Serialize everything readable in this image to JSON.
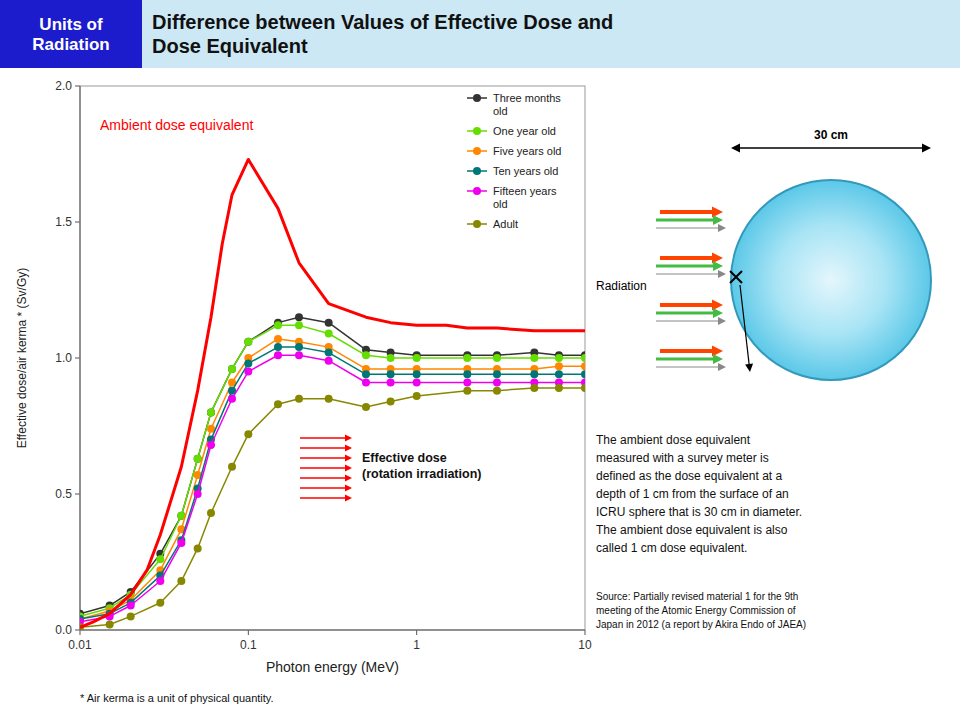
{
  "chart_data": {
    "type": "line",
    "title": "Difference between Values of Effective Dose and\nDose Equivalent",
    "subtitle": "Units of\nRadiation",
    "x_label": "Photon energy (MeV)",
    "y_label": "Effective dose/air kerma * (Sv/Gy)",
    "x": [
      0.01,
      0.015,
      0.02,
      0.03,
      0.04,
      0.05,
      0.06,
      0.08,
      0.1,
      0.15,
      0.2,
      0.3,
      0.5,
      0.7,
      1.0,
      2.0,
      3.0,
      5.0,
      7.0,
      10.0
    ],
    "series": [
      {
        "name": "Three months\nold",
        "color": "#333333",
        "marker": "circle",
        "values": [
          0.06,
          0.09,
          0.14,
          0.28,
          0.42,
          0.63,
          0.8,
          0.96,
          1.06,
          1.13,
          1.15,
          1.13,
          1.03,
          1.02,
          1.01,
          1.01,
          1.01,
          1.02,
          1.01,
          1.01
        ]
      },
      {
        "name": "One year old",
        "color": "#66dd00",
        "marker": "circle",
        "values": [
          0.05,
          0.08,
          0.13,
          0.26,
          0.42,
          0.63,
          0.8,
          0.96,
          1.06,
          1.12,
          1.12,
          1.09,
          1.01,
          1.0,
          1.0,
          1.0,
          1.0,
          1.0,
          1.0,
          1.0
        ]
      },
      {
        "name": "Five years old",
        "color": "#ff8800",
        "marker": "circle",
        "values": [
          0.04,
          0.07,
          0.11,
          0.22,
          0.37,
          0.57,
          0.74,
          0.91,
          1.0,
          1.07,
          1.06,
          1.04,
          0.96,
          0.96,
          0.96,
          0.96,
          0.96,
          0.96,
          0.97,
          0.97
        ]
      },
      {
        "name": "Ten years old",
        "color": "#007777",
        "marker": "circle",
        "values": [
          0.04,
          0.06,
          0.1,
          0.2,
          0.33,
          0.52,
          0.7,
          0.88,
          0.98,
          1.04,
          1.04,
          1.02,
          0.94,
          0.94,
          0.94,
          0.94,
          0.94,
          0.94,
          0.94,
          0.94
        ]
      },
      {
        "name": "Fifteen years\nold",
        "color": "#ee00ee",
        "marker": "circle",
        "values": [
          0.03,
          0.05,
          0.09,
          0.18,
          0.32,
          0.5,
          0.68,
          0.85,
          0.95,
          1.01,
          1.01,
          0.99,
          0.91,
          0.91,
          0.91,
          0.91,
          0.91,
          0.91,
          0.91,
          0.91
        ]
      },
      {
        "name": "Adult",
        "color": "#888800",
        "marker": "circle",
        "values": [
          0.01,
          0.02,
          0.05,
          0.1,
          0.18,
          0.3,
          0.43,
          0.6,
          0.72,
          0.83,
          0.85,
          0.85,
          0.82,
          0.84,
          0.86,
          0.88,
          0.88,
          0.89,
          0.89,
          0.89
        ]
      },
      {
        "name": "Ambient dose equivalent",
        "color": "#ff0000",
        "marker": "none",
        "x": [
          0.01,
          0.012,
          0.015,
          0.02,
          0.025,
          0.03,
          0.04,
          0.05,
          0.06,
          0.07,
          0.08,
          0.1,
          0.15,
          0.2,
          0.3,
          0.5,
          0.7,
          1.0,
          1.5,
          2.0,
          3.0,
          5.0,
          7.0,
          10.0
        ],
        "values": [
          0.01,
          0.03,
          0.06,
          0.13,
          0.22,
          0.35,
          0.6,
          0.88,
          1.15,
          1.42,
          1.6,
          1.73,
          1.55,
          1.35,
          1.2,
          1.15,
          1.13,
          1.12,
          1.12,
          1.11,
          1.11,
          1.1,
          1.1,
          1.1
        ]
      }
    ],
    "xlim": [
      0.01,
      10
    ],
    "ylim": [
      0,
      2
    ],
    "xticks": [
      0.01,
      0.1,
      1,
      10
    ],
    "yticks": [
      {
        "value": 0,
        "label": "0.0"
      },
      0.5,
      {
        "value": 1,
        "label": "1.0"
      },
      1.5,
      {
        "value": 2,
        "label": "2.0"
      }
    ],
    "log": "x",
    "grid": false,
    "legend": "upper right",
    "annotations": [
      "Effective dose\n(rotation irradiation)",
      "* Air kerma is a unit of physical quantity.",
      "The ambient dose equivalent\nmeasured with a survey meter is\ndefined as the dose equivalent at a\ndepth of 1 cm from the surface of an\nICRU sphere that is 30 cm in diameter.\nThe ambient dose equivalent is also\ncalled 1 cm dose equivalent.",
      "Source: Partially revised material 1 for the 9th\nmeeting of the Atomic Energy Commission of\nJapan in 2012 (a report by Akira Endo of JAEA)",
      "Radiation",
      "30 cm"
    ]
  }
}
